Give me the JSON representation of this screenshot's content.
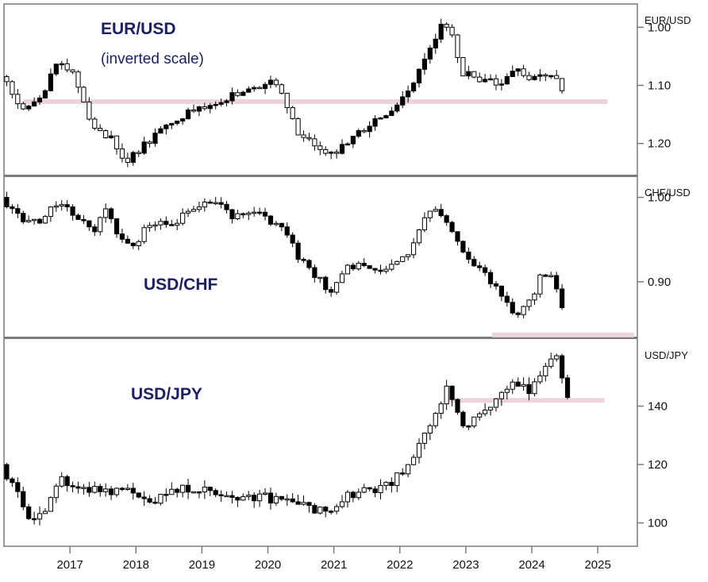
{
  "chart_data": {
    "type": "candlestick",
    "x_axis": {
      "labels": [
        "2017",
        "2018",
        "2019",
        "2020",
        "2021",
        "2022",
        "2023",
        "2024",
        "2025"
      ],
      "range": [
        2016.0,
        2025.6
      ]
    },
    "panels": [
      {
        "title": "EUR/USD",
        "subtitle": "(inverted scale)",
        "axis_title": "EUR/USD",
        "inverted": true,
        "ylim": [
          0.96,
          1.255
        ],
        "yticks": [
          1.0,
          1.1,
          1.2
        ],
        "ytick_labels": [
          "1.00",
          "1.10",
          "1.20"
        ],
        "reference_line": {
          "value": 1.128,
          "x_start": 2016.3,
          "x_end": 2025.15,
          "color": "#ecd3dc"
        },
        "anchors": [
          [
            2016.0,
            1.085
          ],
          [
            2016.3,
            1.14
          ],
          [
            2016.6,
            1.125
          ],
          [
            2016.85,
            1.06
          ],
          [
            2017.1,
            1.08
          ],
          [
            2017.35,
            1.17
          ],
          [
            2017.65,
            1.19
          ],
          [
            2017.9,
            1.23
          ],
          [
            2018.1,
            1.21
          ],
          [
            2018.5,
            1.17
          ],
          [
            2018.9,
            1.14
          ],
          [
            2019.3,
            1.13
          ],
          [
            2019.6,
            1.11
          ],
          [
            2019.9,
            1.1
          ],
          [
            2020.15,
            1.09
          ],
          [
            2020.25,
            1.12
          ],
          [
            2020.5,
            1.18
          ],
          [
            2020.9,
            1.21
          ],
          [
            2021.0,
            1.22
          ],
          [
            2021.3,
            1.19
          ],
          [
            2021.7,
            1.16
          ],
          [
            2022.0,
            1.13
          ],
          [
            2022.2,
            1.1
          ],
          [
            2022.45,
            1.05
          ],
          [
            2022.7,
            0.99
          ],
          [
            2022.85,
            1.02
          ],
          [
            2023.0,
            1.08
          ],
          [
            2023.3,
            1.09
          ],
          [
            2023.6,
            1.1
          ],
          [
            2023.8,
            1.07
          ],
          [
            2024.0,
            1.09
          ],
          [
            2024.3,
            1.08
          ],
          [
            2024.45,
            1.09
          ],
          [
            2024.5,
            1.11
          ]
        ]
      },
      {
        "title": "USD/CHF",
        "subtitle": "",
        "axis_title": "CHF/USD",
        "inverted": false,
        "ylim": [
          0.835,
          1.025
        ],
        "yticks": [
          0.9,
          1.0
        ],
        "ytick_labels": [
          "0.90",
          "1.00"
        ],
        "reference_line": {
          "value": 0.837,
          "x_start": 2023.4,
          "x_end": 2025.55,
          "color": "#ecd3dc"
        },
        "anchors": [
          [
            2016.0,
            1.0
          ],
          [
            2016.3,
            0.975
          ],
          [
            2016.6,
            0.97
          ],
          [
            2016.85,
            0.995
          ],
          [
            2017.1,
            0.98
          ],
          [
            2017.4,
            0.96
          ],
          [
            2017.6,
            0.985
          ],
          [
            2017.8,
            0.95
          ],
          [
            2018.0,
            0.94
          ],
          [
            2018.2,
            0.965
          ],
          [
            2018.6,
            0.97
          ],
          [
            2019.0,
            0.99
          ],
          [
            2019.3,
            0.995
          ],
          [
            2019.5,
            0.975
          ],
          [
            2019.8,
            0.985
          ],
          [
            2020.0,
            0.975
          ],
          [
            2020.3,
            0.96
          ],
          [
            2020.5,
            0.93
          ],
          [
            2020.8,
            0.905
          ],
          [
            2021.0,
            0.885
          ],
          [
            2021.2,
            0.915
          ],
          [
            2021.5,
            0.92
          ],
          [
            2021.8,
            0.915
          ],
          [
            2022.0,
            0.925
          ],
          [
            2022.2,
            0.935
          ],
          [
            2022.4,
            0.975
          ],
          [
            2022.6,
            0.985
          ],
          [
            2022.8,
            0.96
          ],
          [
            2023.0,
            0.935
          ],
          [
            2023.3,
            0.91
          ],
          [
            2023.6,
            0.885
          ],
          [
            2023.8,
            0.86
          ],
          [
            2024.0,
            0.875
          ],
          [
            2024.2,
            0.91
          ],
          [
            2024.35,
            0.905
          ],
          [
            2024.5,
            0.87
          ]
        ]
      },
      {
        "title": "USD/JPY",
        "subtitle": "",
        "axis_title": "USD/JPY",
        "inverted": false,
        "ylim": [
          92,
          163
        ],
        "yticks": [
          100,
          120,
          140
        ],
        "ytick_labels": [
          "100",
          "120",
          "140"
        ],
        "reference_line": {
          "value": 142,
          "x_start": 2022.75,
          "x_end": 2025.1,
          "color": "#ecd3dc"
        },
        "anchors": [
          [
            2016.0,
            120
          ],
          [
            2016.2,
            112
          ],
          [
            2016.4,
            102
          ],
          [
            2016.65,
            103
          ],
          [
            2016.9,
            115
          ],
          [
            2017.3,
            112
          ],
          [
            2017.6,
            110
          ],
          [
            2017.9,
            112
          ],
          [
            2018.2,
            107
          ],
          [
            2018.6,
            111
          ],
          [
            2018.9,
            112
          ],
          [
            2019.3,
            110
          ],
          [
            2019.6,
            107
          ],
          [
            2019.9,
            109
          ],
          [
            2020.2,
            108
          ],
          [
            2020.5,
            107
          ],
          [
            2020.8,
            104
          ],
          [
            2021.0,
            104
          ],
          [
            2021.3,
            110
          ],
          [
            2021.6,
            111
          ],
          [
            2021.9,
            114
          ],
          [
            2022.15,
            118
          ],
          [
            2022.35,
            128
          ],
          [
            2022.55,
            135
          ],
          [
            2022.75,
            147
          ],
          [
            2022.9,
            138
          ],
          [
            2023.05,
            132
          ],
          [
            2023.3,
            138
          ],
          [
            2023.55,
            143
          ],
          [
            2023.8,
            148
          ],
          [
            2024.0,
            145
          ],
          [
            2024.2,
            151
          ],
          [
            2024.4,
            157
          ],
          [
            2024.5,
            150
          ],
          [
            2024.55,
            143
          ]
        ]
      }
    ]
  }
}
